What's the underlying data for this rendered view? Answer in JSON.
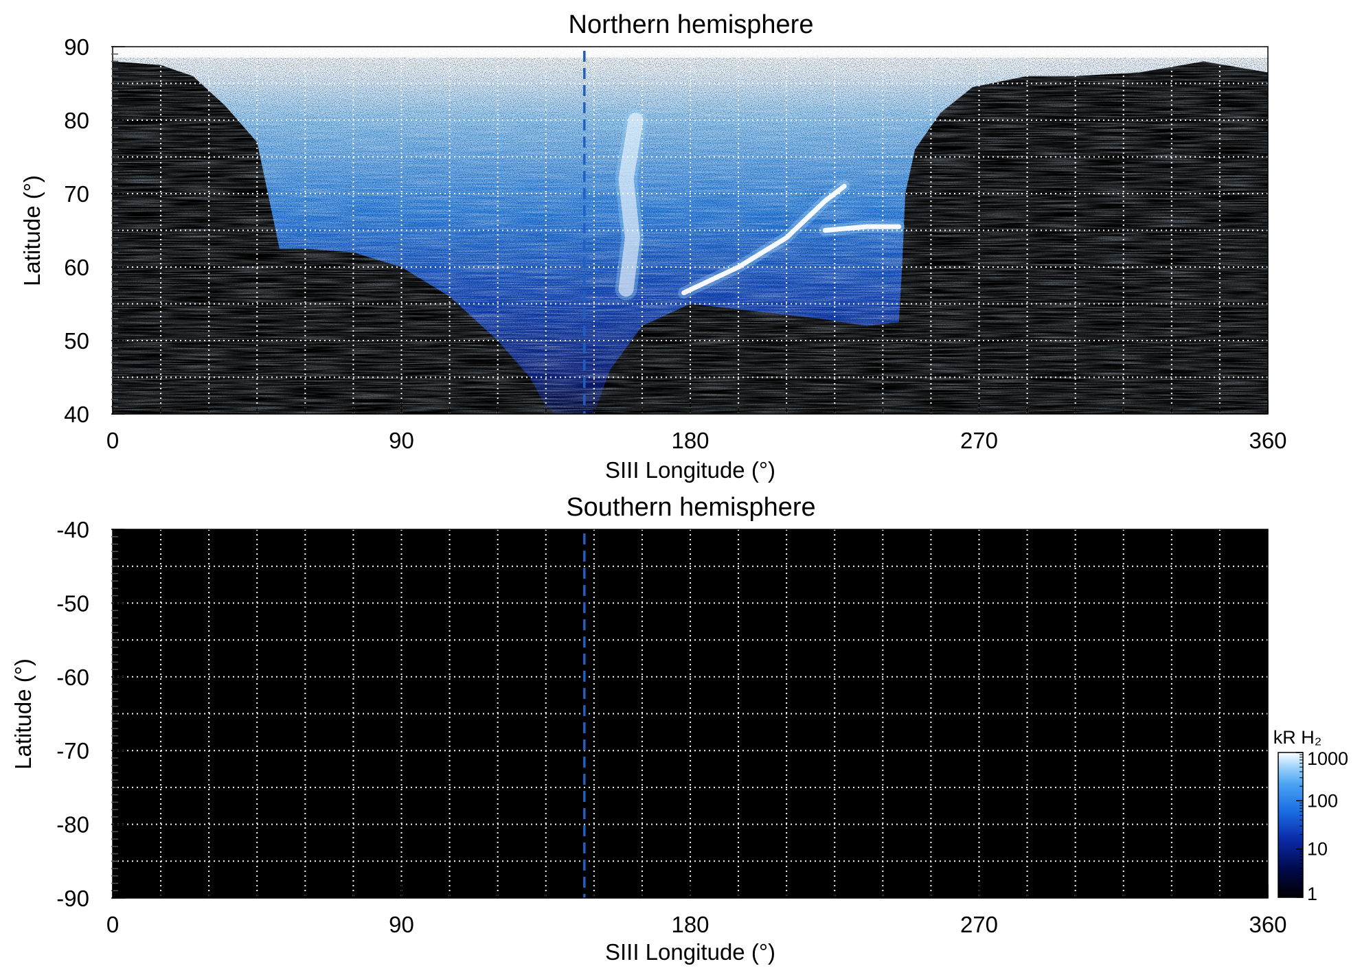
{
  "colors": {
    "background": "#000000",
    "grid": "#ffffff",
    "reference_line": "#1f5fc4",
    "colormap": [
      "#000000",
      "#000a4d",
      "#0a2aa8",
      "#1c6fe3",
      "#4aa3f2",
      "#9fd3fa",
      "#ffffff"
    ]
  },
  "colorbar": {
    "title": "kR H₂",
    "scale": "log",
    "range": [
      1,
      1000
    ],
    "ticks": [
      "1000",
      "100",
      "10",
      "1"
    ]
  },
  "chart_data": [
    {
      "type": "heatmap",
      "title": "Northern hemisphere",
      "xlabel": "SIII Longitude (°)",
      "ylabel": "Latitude (°)",
      "xlim": [
        0,
        360
      ],
      "ylim": [
        40,
        90
      ],
      "xticks": [
        0,
        90,
        180,
        270,
        360
      ],
      "yticks": [
        40,
        50,
        60,
        70,
        80,
        90
      ],
      "grid": true,
      "grid_x_step": 15,
      "grid_y_step": 5,
      "reference_longitude": 147,
      "z_label": "kR H₂",
      "z_scale": "log",
      "zlim": [
        1,
        1000
      ],
      "coverage_lower_lat_by_longitude": [
        [
          0,
          88
        ],
        [
          15,
          87.5
        ],
        [
          25,
          86
        ],
        [
          35,
          82
        ],
        [
          45,
          77
        ],
        [
          52,
          62.5
        ],
        [
          60,
          62.5
        ],
        [
          75,
          62
        ],
        [
          90,
          60
        ],
        [
          105,
          56
        ],
        [
          120,
          50
        ],
        [
          130,
          45
        ],
        [
          135,
          41
        ],
        [
          138,
          40
        ],
        [
          150,
          40
        ],
        [
          155,
          46
        ],
        [
          165,
          52
        ],
        [
          180,
          55
        ],
        [
          200,
          54
        ],
        [
          220,
          53
        ],
        [
          235,
          52
        ],
        [
          245,
          52.5
        ],
        [
          246,
          60
        ],
        [
          247,
          70
        ],
        [
          250,
          76
        ],
        [
          258,
          81
        ],
        [
          268,
          84.5
        ],
        [
          285,
          86
        ],
        [
          300,
          86
        ],
        [
          320,
          86.5
        ],
        [
          340,
          88
        ],
        [
          360,
          86.5
        ]
      ],
      "features": [
        {
          "label": "",
          "kind": "arc",
          "points": [
            [
              178,
              56.5
            ],
            [
              195,
              60
            ],
            [
              210,
              64
            ],
            [
              222,
              69
            ],
            [
              228,
              71
            ]
          ],
          "intensity": 1000
        },
        {
          "label": "",
          "kind": "arc",
          "points": [
            [
              222,
              65
            ],
            [
              235,
              65.5
            ],
            [
              245,
              65.5
            ]
          ],
          "intensity": 1000
        },
        {
          "label": "",
          "kind": "band",
          "points": [
            [
              160,
              57
            ],
            [
              162,
              64
            ],
            [
              160,
              72
            ],
            [
              163,
              80
            ]
          ],
          "intensity": 800
        }
      ]
    },
    {
      "type": "heatmap",
      "title": "Southern hemisphere",
      "xlabel": "SIII Longitude (°)",
      "ylabel": "Latitude (°)",
      "xlim": [
        0,
        360
      ],
      "ylim": [
        -90,
        -40
      ],
      "xticks": [
        0,
        90,
        180,
        270,
        360
      ],
      "yticks": [
        -90,
        -80,
        -70,
        -60,
        -50,
        -40
      ],
      "grid": true,
      "grid_x_step": 15,
      "grid_y_step": 5,
      "reference_longitude": 147,
      "z_label": "kR H₂",
      "z_scale": "log",
      "zlim": [
        1,
        1000
      ],
      "coverage_lower_lat_by_longitude": [],
      "features": []
    }
  ]
}
